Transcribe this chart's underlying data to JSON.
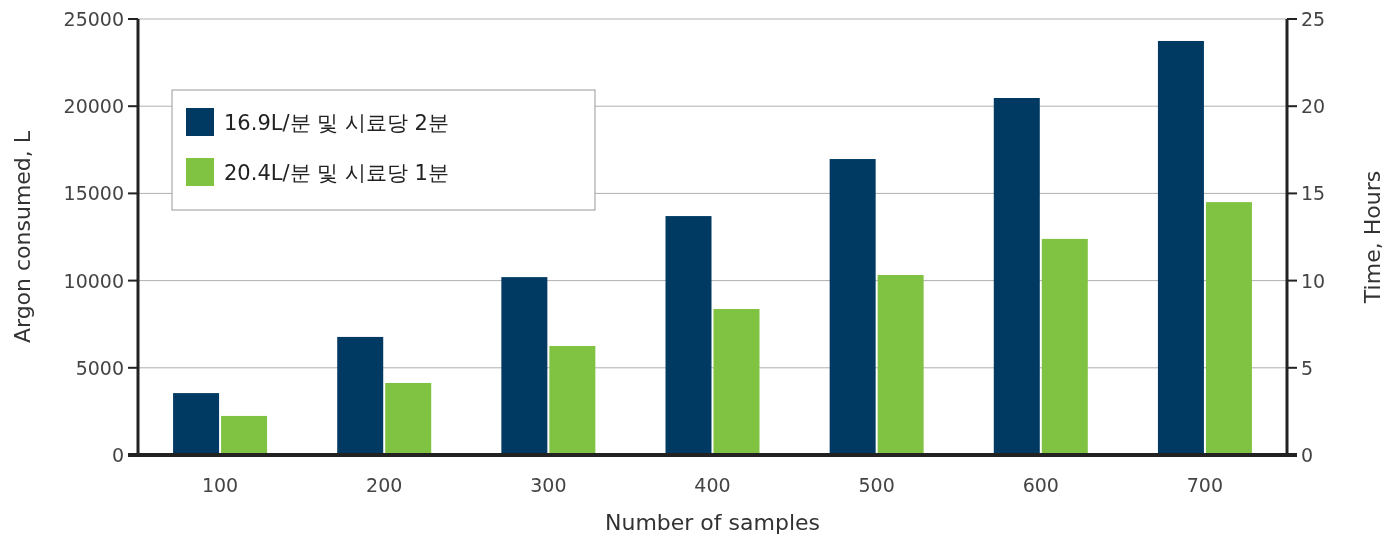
{
  "chart_data": {
    "type": "bar",
    "xlabel": "Number of samples",
    "ylabel": "Argon consumed, L",
    "y2label": "Time, Hours",
    "categories": [
      "100",
      "200",
      "300",
      "400",
      "500",
      "600",
      "700"
    ],
    "series": [
      {
        "name": "16.9L/분 및 시료당 2분",
        "color": "#003a63",
        "values": [
          3550,
          6770,
          10200,
          13700,
          16970,
          20470,
          23740
        ]
      },
      {
        "name": "20.4L/분 및 시료당 1분",
        "color": "#80c241",
        "values": [
          2240,
          4130,
          6250,
          8370,
          10320,
          12390,
          14500
        ]
      }
    ],
    "ylim": [
      0,
      25000
    ],
    "yticks": [
      0,
      5000,
      10000,
      15000,
      20000,
      25000
    ],
    "y2lim": [
      0,
      25
    ],
    "y2ticks": [
      0,
      5,
      10,
      15,
      20,
      25
    ],
    "grid": "y",
    "legend": "top left"
  }
}
